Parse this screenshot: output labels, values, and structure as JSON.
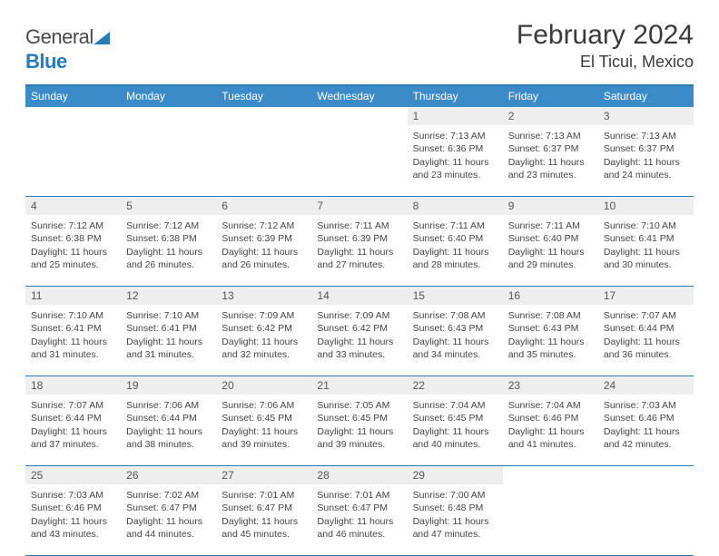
{
  "logo": {
    "part1": "General",
    "part2": "Blue"
  },
  "title": "February 2024",
  "location": "El Ticui, Mexico",
  "colors": {
    "header_bg": "#3b8bc9",
    "border": "#2a7ab8",
    "daynum_bg": "#eeeeee",
    "text": "#444444",
    "title_text": "#3a3a3a"
  },
  "dow": [
    "Sunday",
    "Monday",
    "Tuesday",
    "Wednesday",
    "Thursday",
    "Friday",
    "Saturday"
  ],
  "weeks": [
    [
      null,
      null,
      null,
      null,
      {
        "n": "1",
        "sr": "7:13 AM",
        "ss": "6:36 PM",
        "dl": "11 hours and 23 minutes."
      },
      {
        "n": "2",
        "sr": "7:13 AM",
        "ss": "6:37 PM",
        "dl": "11 hours and 23 minutes."
      },
      {
        "n": "3",
        "sr": "7:13 AM",
        "ss": "6:37 PM",
        "dl": "11 hours and 24 minutes."
      }
    ],
    [
      {
        "n": "4",
        "sr": "7:12 AM",
        "ss": "6:38 PM",
        "dl": "11 hours and 25 minutes."
      },
      {
        "n": "5",
        "sr": "7:12 AM",
        "ss": "6:38 PM",
        "dl": "11 hours and 26 minutes."
      },
      {
        "n": "6",
        "sr": "7:12 AM",
        "ss": "6:39 PM",
        "dl": "11 hours and 26 minutes."
      },
      {
        "n": "7",
        "sr": "7:11 AM",
        "ss": "6:39 PM",
        "dl": "11 hours and 27 minutes."
      },
      {
        "n": "8",
        "sr": "7:11 AM",
        "ss": "6:40 PM",
        "dl": "11 hours and 28 minutes."
      },
      {
        "n": "9",
        "sr": "7:11 AM",
        "ss": "6:40 PM",
        "dl": "11 hours and 29 minutes."
      },
      {
        "n": "10",
        "sr": "7:10 AM",
        "ss": "6:41 PM",
        "dl": "11 hours and 30 minutes."
      }
    ],
    [
      {
        "n": "11",
        "sr": "7:10 AM",
        "ss": "6:41 PM",
        "dl": "11 hours and 31 minutes."
      },
      {
        "n": "12",
        "sr": "7:10 AM",
        "ss": "6:41 PM",
        "dl": "11 hours and 31 minutes."
      },
      {
        "n": "13",
        "sr": "7:09 AM",
        "ss": "6:42 PM",
        "dl": "11 hours and 32 minutes."
      },
      {
        "n": "14",
        "sr": "7:09 AM",
        "ss": "6:42 PM",
        "dl": "11 hours and 33 minutes."
      },
      {
        "n": "15",
        "sr": "7:08 AM",
        "ss": "6:43 PM",
        "dl": "11 hours and 34 minutes."
      },
      {
        "n": "16",
        "sr": "7:08 AM",
        "ss": "6:43 PM",
        "dl": "11 hours and 35 minutes."
      },
      {
        "n": "17",
        "sr": "7:07 AM",
        "ss": "6:44 PM",
        "dl": "11 hours and 36 minutes."
      }
    ],
    [
      {
        "n": "18",
        "sr": "7:07 AM",
        "ss": "6:44 PM",
        "dl": "11 hours and 37 minutes."
      },
      {
        "n": "19",
        "sr": "7:06 AM",
        "ss": "6:44 PM",
        "dl": "11 hours and 38 minutes."
      },
      {
        "n": "20",
        "sr": "7:06 AM",
        "ss": "6:45 PM",
        "dl": "11 hours and 39 minutes."
      },
      {
        "n": "21",
        "sr": "7:05 AM",
        "ss": "6:45 PM",
        "dl": "11 hours and 39 minutes."
      },
      {
        "n": "22",
        "sr": "7:04 AM",
        "ss": "6:45 PM",
        "dl": "11 hours and 40 minutes."
      },
      {
        "n": "23",
        "sr": "7:04 AM",
        "ss": "6:46 PM",
        "dl": "11 hours and 41 minutes."
      },
      {
        "n": "24",
        "sr": "7:03 AM",
        "ss": "6:46 PM",
        "dl": "11 hours and 42 minutes."
      }
    ],
    [
      {
        "n": "25",
        "sr": "7:03 AM",
        "ss": "6:46 PM",
        "dl": "11 hours and 43 minutes."
      },
      {
        "n": "26",
        "sr": "7:02 AM",
        "ss": "6:47 PM",
        "dl": "11 hours and 44 minutes."
      },
      {
        "n": "27",
        "sr": "7:01 AM",
        "ss": "6:47 PM",
        "dl": "11 hours and 45 minutes."
      },
      {
        "n": "28",
        "sr": "7:01 AM",
        "ss": "6:47 PM",
        "dl": "11 hours and 46 minutes."
      },
      {
        "n": "29",
        "sr": "7:00 AM",
        "ss": "6:48 PM",
        "dl": "11 hours and 47 minutes."
      },
      null,
      null
    ]
  ],
  "labels": {
    "sunrise": "Sunrise:",
    "sunset": "Sunset:",
    "daylight": "Daylight:"
  }
}
